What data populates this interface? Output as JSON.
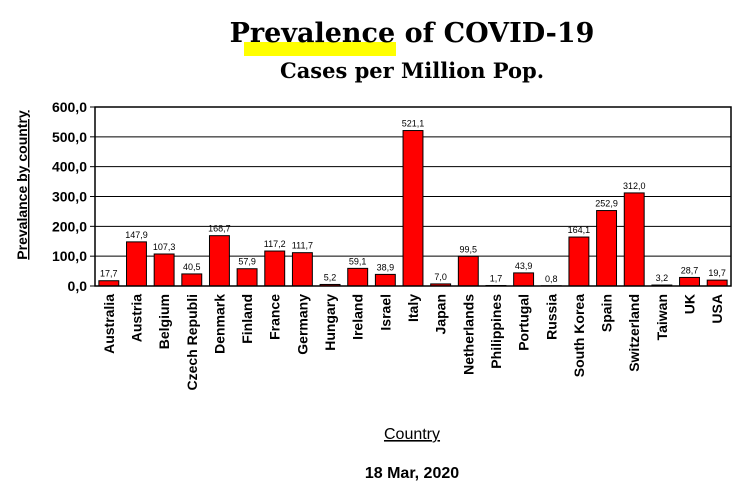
{
  "chart_data": {
    "type": "bar",
    "title": "Prevalence of COVID-19",
    "title_highlight": "Prevalence",
    "subtitle": "Cases per Million Pop.",
    "xlabel": "Country",
    "ylabel": "Prevalance by country",
    "footer": "18 Mar, 2020",
    "ylim": [
      0,
      600
    ],
    "yticks": [
      "0,0",
      "100,0",
      "200,0",
      "300,0",
      "400,0",
      "500,0",
      "600,0"
    ],
    "grid": true,
    "categories": [
      "Australia",
      "Austria",
      "Belgium",
      "Czech Republi",
      "Denmark",
      "Finland",
      "France",
      "Germany",
      "Hungary",
      "Ireland",
      "Israel",
      "Italy",
      "Japan",
      "Netherlands",
      "Philippines",
      "Portugal",
      "Russia",
      "South Korea",
      "Spain",
      "Switzerland",
      "Taiwan",
      "UK",
      "USA"
    ],
    "values": [
      17.7,
      147.9,
      107.3,
      40.5,
      168.7,
      57.9,
      117.2,
      111.7,
      5.2,
      59.1,
      38.9,
      521.1,
      7.0,
      99.5,
      1.7,
      43.9,
      0.8,
      164.1,
      252.9,
      312.0,
      3.2,
      28.7,
      19.7
    ],
    "value_labels": [
      "17,7",
      "147,9",
      "107,3",
      "40,5",
      "168,7",
      "57,9",
      "117,2",
      "111,7",
      "5,2",
      "59,1",
      "38,9",
      "521,1",
      "7,0",
      "99,5",
      "1,7",
      "43,9",
      "0,8",
      "164,1",
      "252,9",
      "312,0",
      "3,2",
      "28,7",
      "19,7"
    ],
    "colors": {
      "bar": "#ff0000",
      "highlight": "#ffff00"
    }
  }
}
